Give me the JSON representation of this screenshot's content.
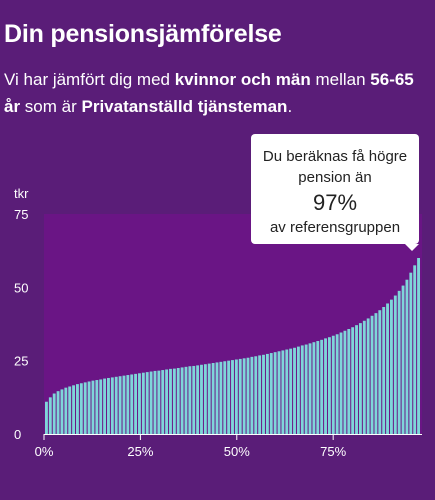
{
  "header": {
    "title": "Din pensionsjämförelse",
    "desc_1": "Vi har jämfört dig med ",
    "desc_group": "kvinnor och män",
    "desc_2": " mellan ",
    "desc_age": "56-65 år",
    "desc_3": " som är ",
    "desc_occupation": "Privatanställd tjänsteman",
    "desc_4": "."
  },
  "tooltip": {
    "line1": "Du beräknas få högre pension än",
    "percent": "97%",
    "line3": "av referensgruppen"
  },
  "colors": {
    "background": "#5a1d78",
    "plot_area": "#6a1585",
    "bars": "#7fd6d9",
    "highlight_bar": "#a8ecee"
  },
  "chart_data": {
    "type": "bar",
    "ylabel": "tkr",
    "ylim": [
      0,
      75
    ],
    "yticks": [
      0,
      25,
      50,
      75
    ],
    "xticks": [
      "0%",
      "25%",
      "50%",
      "75%"
    ],
    "xlim": [
      0,
      97
    ],
    "grid": false,
    "highlight_index": 97,
    "values": [
      11,
      12.5,
      13.8,
      14.6,
      15.2,
      15.8,
      16.2,
      16.6,
      17.0,
      17.3,
      17.6,
      17.9,
      18.2,
      18.4,
      18.6,
      18.9,
      19.1,
      19.3,
      19.5,
      19.7,
      19.9,
      20.1,
      20.3,
      20.5,
      20.7,
      20.9,
      21.1,
      21.3,
      21.5,
      21.6,
      21.8,
      22.0,
      22.2,
      22.3,
      22.5,
      22.7,
      22.9,
      23.1,
      23.2,
      23.4,
      23.6,
      23.8,
      24.0,
      24.2,
      24.4,
      24.6,
      24.8,
      25.0,
      25.2,
      25.4,
      25.6,
      25.8,
      26.0,
      26.3,
      26.5,
      26.8,
      27.0,
      27.3,
      27.6,
      27.9,
      28.2,
      28.5,
      28.8,
      29.1,
      29.4,
      29.8,
      30.2,
      30.5,
      30.9,
      31.3,
      31.7,
      32.1,
      32.6,
      33.0,
      33.5,
      34.0,
      34.6,
      35.2,
      35.8,
      36.4,
      37.1,
      37.8,
      38.6,
      39.4,
      40.3,
      41.2,
      42.2,
      43.3,
      44.5,
      45.8,
      47.2,
      48.8,
      50.6,
      52.6,
      55.0,
      57.5,
      60.0
    ]
  }
}
